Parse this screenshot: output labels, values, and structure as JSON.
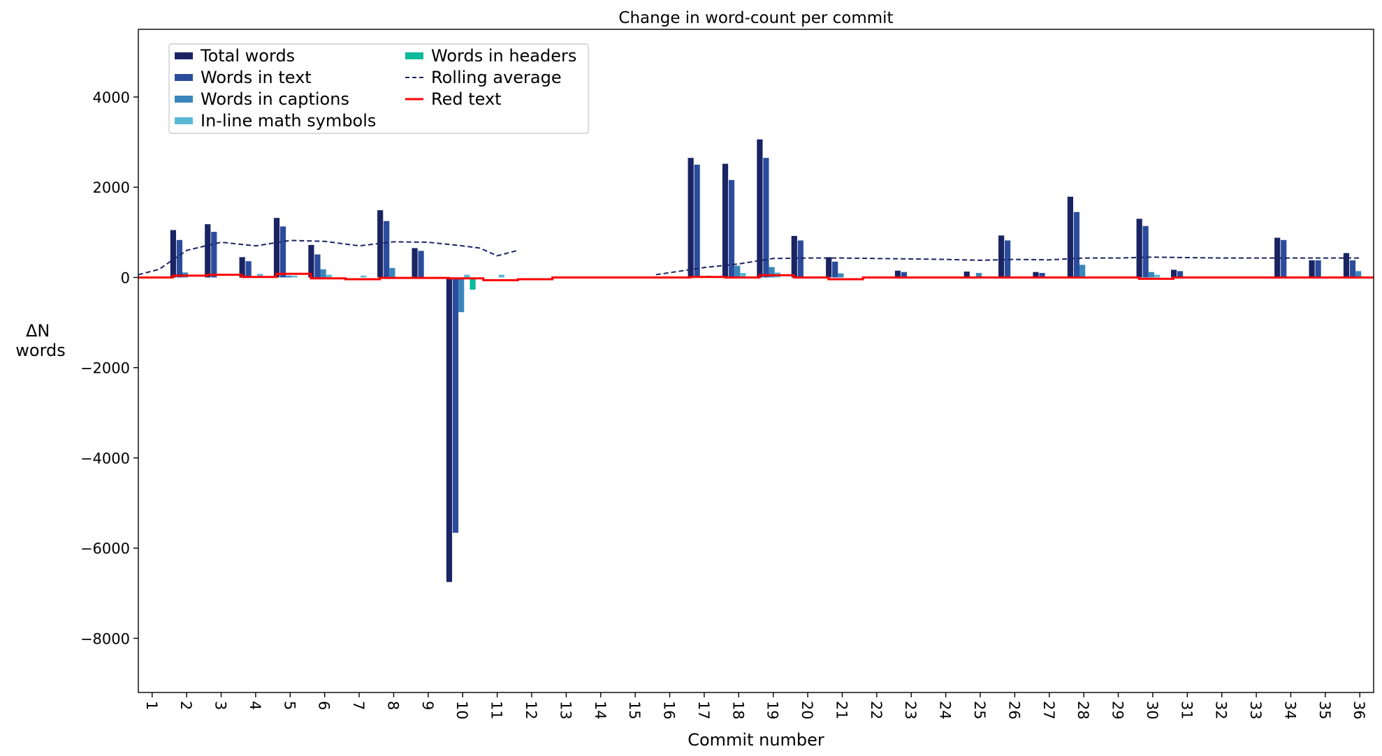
{
  "chart_data": {
    "type": "bar",
    "title": "Change in word-count per commit",
    "xlabel": "Commit number",
    "ylabel": [
      "ΔN",
      "words"
    ],
    "xlim": [
      0.6,
      36.4
    ],
    "ylim": [
      -9200,
      5500
    ],
    "yticks": [
      -8000,
      -6000,
      -4000,
      -2000,
      0,
      2000,
      4000
    ],
    "categories": [
      "1",
      "2",
      "3",
      "4",
      "5",
      "6",
      "7",
      "8",
      "9",
      "10",
      "11",
      "12",
      "13",
      "14",
      "15",
      "16",
      "17",
      "18",
      "19",
      "20",
      "21",
      "22",
      "23",
      "24",
      "25",
      "26",
      "27",
      "28",
      "29",
      "30",
      "31",
      "32",
      "33",
      "34",
      "35",
      "36"
    ],
    "grid": false,
    "legend_position": "upper-left",
    "series": [
      {
        "name": "Total words",
        "kind": "bar",
        "color": "#1a2463",
        "values": [
          0,
          1050,
          1180,
          450,
          1320,
          720,
          0,
          1490,
          650,
          -6750,
          0,
          0,
          0,
          0,
          0,
          0,
          2650,
          2520,
          3060,
          920,
          450,
          0,
          150,
          0,
          130,
          930,
          120,
          1790,
          0,
          1300,
          170,
          0,
          0,
          880,
          380,
          540
        ]
      },
      {
        "name": "Words in text",
        "kind": "bar",
        "color": "#2b4c9c",
        "values": [
          0,
          830,
          1010,
          360,
          1130,
          510,
          0,
          1250,
          590,
          -5660,
          0,
          0,
          0,
          0,
          0,
          0,
          2500,
          2160,
          2650,
          820,
          350,
          0,
          120,
          0,
          0,
          820,
          100,
          1450,
          0,
          1140,
          140,
          0,
          0,
          830,
          380,
          380
        ]
      },
      {
        "name": "Words in captions",
        "kind": "bar",
        "color": "#3a86bb",
        "values": [
          0,
          110,
          0,
          0,
          40,
          180,
          0,
          210,
          0,
          -770,
          0,
          0,
          0,
          0,
          0,
          0,
          0,
          260,
          230,
          0,
          90,
          0,
          0,
          0,
          100,
          0,
          0,
          280,
          0,
          120,
          0,
          0,
          0,
          0,
          0,
          140
        ]
      },
      {
        "name": "In-line math symbols",
        "kind": "bar",
        "color": "#5ab8d6",
        "values": [
          0,
          0,
          0,
          80,
          40,
          60,
          40,
          0,
          0,
          60,
          60,
          0,
          0,
          0,
          0,
          0,
          40,
          100,
          110,
          0,
          0,
          0,
          0,
          0,
          0,
          0,
          0,
          0,
          0,
          60,
          0,
          0,
          0,
          0,
          0,
          0
        ]
      },
      {
        "name": "Words in headers",
        "kind": "bar",
        "color": "#0bb99b",
        "values": [
          0,
          0,
          0,
          0,
          0,
          0,
          0,
          0,
          0,
          -270,
          0,
          0,
          0,
          0,
          0,
          0,
          0,
          0,
          0,
          0,
          0,
          0,
          0,
          0,
          0,
          0,
          0,
          0,
          0,
          0,
          0,
          0,
          0,
          0,
          0,
          0
        ]
      },
      {
        "name": "Rolling average",
        "kind": "line",
        "color": "#1a2463",
        "dash": true,
        "x": [
          0.6,
          1.2,
          2,
          3,
          4,
          5,
          6,
          7,
          8,
          9,
          10,
          10.5,
          11,
          11.6
        ],
        "y": [
          60,
          180,
          600,
          780,
          700,
          820,
          800,
          700,
          790,
          780,
          700,
          650,
          480,
          600
        ]
      },
      {
        "name": "Rolling average",
        "kind": "line",
        "color": "#1a2463",
        "dash": true,
        "show_in_legend": false,
        "x": [
          15.6,
          17,
          18,
          19,
          20,
          21,
          22,
          23,
          24,
          25,
          26,
          27,
          28,
          29,
          30,
          31,
          32,
          33,
          34,
          35,
          36
        ],
        "y": [
          60,
          220,
          300,
          420,
          430,
          430,
          420,
          410,
          400,
          380,
          400,
          390,
          430,
          430,
          450,
          440,
          430,
          430,
          430,
          430,
          430
        ]
      },
      {
        "name": "Red text",
        "kind": "step",
        "color": "#ff0000",
        "edges": [
          0.6,
          1.6,
          2.6,
          3.6,
          4.6,
          5.6,
          6.6,
          7.6,
          8.6,
          9.6,
          10.6,
          11.6,
          12.6,
          16.6,
          17.6,
          18.6,
          19.6,
          20.6,
          21.6,
          29.6,
          30.6,
          36.4
        ],
        "levels": [
          0,
          40,
          60,
          10,
          80,
          -20,
          -40,
          -10,
          -10,
          -20,
          -60,
          -40,
          0,
          10,
          0,
          50,
          0,
          -40,
          0,
          -30,
          0
        ]
      }
    ]
  }
}
